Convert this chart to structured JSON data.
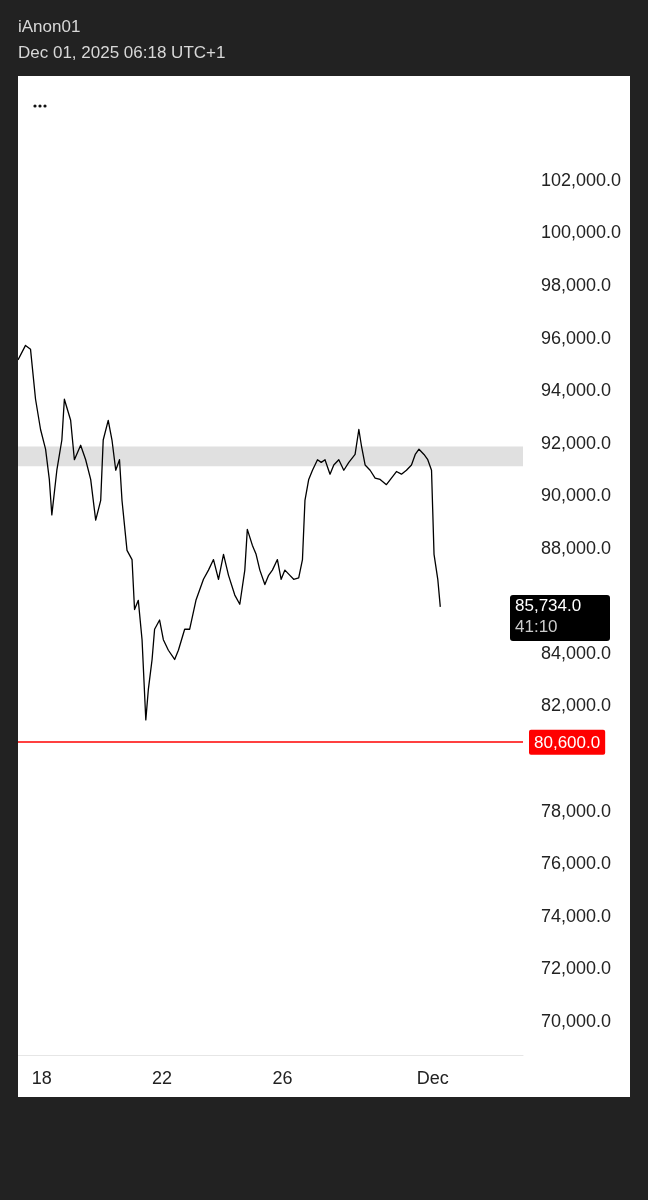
{
  "chart_data": {
    "type": "line",
    "title": "iAnon01",
    "subtitle": "Dec 01, 2025 06:18 UTC+1",
    "x": [
      "2025-11-17T05:00",
      "2025-11-17T11:00",
      "2025-11-17T15:00",
      "2025-11-17T19:00",
      "2025-11-17T23:00",
      "2025-11-18T03:00",
      "2025-11-18T06:00",
      "2025-11-18T08:00",
      "2025-11-18T12:00",
      "2025-11-18T16:00",
      "2025-11-18T18:00",
      "2025-11-18T23:00",
      "2025-11-19T02:00",
      "2025-11-19T07:00",
      "2025-11-19T11:00",
      "2025-11-19T15:00",
      "2025-11-19T19:00",
      "2025-11-19T23:00",
      "2025-11-20T01:00",
      "2025-11-20T05:00",
      "2025-11-20T08:00",
      "2025-11-20T11:00",
      "2025-11-20T14:00",
      "2025-11-20T16:00",
      "2025-11-20T20:00",
      "2025-11-21T00:00",
      "2025-11-21T02:00",
      "2025-11-21T05:00",
      "2025-11-21T08:00",
      "2025-11-21T11:00",
      "2025-11-21T13:00",
      "2025-11-21T16:00",
      "2025-11-21T18:00",
      "2025-11-21T22:00",
      "2025-11-22T01:00",
      "2025-11-22T05:00",
      "2025-11-22T10:00",
      "2025-11-22T13:00",
      "2025-11-22T18:00",
      "2025-11-22T22:00",
      "2025-11-23T03:00",
      "2025-11-23T06:00",
      "2025-11-23T09:00",
      "2025-11-23T13:00",
      "2025-11-23T17:00",
      "2025-11-23T21:00",
      "2025-11-24T01:00",
      "2025-11-24T05:00",
      "2025-11-24T10:00",
      "2025-11-24T14:00",
      "2025-11-24T18:00",
      "2025-11-24T20:00",
      "2025-11-25T00:00",
      "2025-11-25T03:00",
      "2025-11-25T06:00",
      "2025-11-25T10:00",
      "2025-11-25T13:00",
      "2025-11-25T16:00",
      "2025-11-25T20:00",
      "2025-11-25T23:00",
      "2025-11-26T02:00",
      "2025-11-26T06:00",
      "2025-11-26T09:00",
      "2025-11-26T13:00",
      "2025-11-26T16:00",
      "2025-11-26T18:00",
      "2025-11-26T21:00",
      "2025-11-27T00:00",
      "2025-11-27T04:00",
      "2025-11-27T07:00",
      "2025-11-27T10:00",
      "2025-11-27T14:00",
      "2025-11-27T17:00",
      "2025-11-27T21:00",
      "2025-11-28T01:00",
      "2025-11-28T05:00",
      "2025-11-28T10:00",
      "2025-11-28T13:00",
      "2025-11-28T15:00",
      "2025-11-28T18:00",
      "2025-11-28T22:00",
      "2025-11-29T02:00",
      "2025-11-29T06:00",
      "2025-11-29T11:00",
      "2025-11-29T15:00",
      "2025-11-29T19:00",
      "2025-11-29T23:00",
      "2025-11-30T03:00",
      "2025-11-30T07:00",
      "2025-11-30T10:00",
      "2025-11-30T13:00",
      "2025-11-30T17:00",
      "2025-11-30T20:00",
      "2025-11-30T23:00",
      "2025-12-01T01:00",
      "2025-12-01T04:00",
      "2025-12-01T06:00"
    ],
    "series": [
      {
        "color": "#000000",
        "values": [
          95150,
          95700,
          95550,
          93650,
          92500,
          91750,
          90600,
          89250,
          90950,
          92100,
          93650,
          92850,
          91350,
          91900,
          91350,
          90600,
          89050,
          89800,
          92100,
          92850,
          92100,
          90950,
          91350,
          89800,
          87900,
          87550,
          85650,
          86000,
          84500,
          81450,
          82600,
          83750,
          84900,
          85250,
          84500,
          84100,
          83750,
          84100,
          84900,
          84900,
          86000,
          86400,
          86800,
          87150,
          87550,
          86800,
          87750,
          86950,
          86200,
          85850,
          87150,
          88700,
          88100,
          87750,
          87150,
          86600,
          86950,
          87150,
          87550,
          86800,
          87150,
          86950,
          86800,
          86850,
          87550,
          89800,
          90600,
          90950,
          91350,
          91250,
          91350,
          90800,
          91150,
          91350,
          90950,
          91250,
          91550,
          92500,
          91900,
          91150,
          90950,
          90650,
          90600,
          90400,
          90650,
          90900,
          90800,
          90950,
          91150,
          91550,
          91750,
          91550,
          91350,
          90950,
          87750,
          86800,
          85750
        ]
      }
    ],
    "xlim": [
      "2025-11-17T05:00",
      "2025-12-04T00:00"
    ],
    "xticks": [
      {
        "value": "2025-11-18",
        "label": "18"
      },
      {
        "value": "2025-11-22",
        "label": "22"
      },
      {
        "value": "2025-11-26",
        "label": "26"
      },
      {
        "value": "2025-12-01",
        "label": "Dec"
      }
    ],
    "ylim": [
      68700,
      105950
    ],
    "yticks": [
      {
        "value": 70000,
        "label": "70,000.0"
      },
      {
        "value": 72000,
        "label": "72,000.0"
      },
      {
        "value": 74000,
        "label": "74,000.0"
      },
      {
        "value": 76000,
        "label": "76,000.0"
      },
      {
        "value": 78000,
        "label": "78,000.0"
      },
      {
        "value": 82000,
        "label": "82,000.0"
      },
      {
        "value": 84000,
        "label": "84,000.0"
      },
      {
        "value": 88000,
        "label": "88,000.0"
      },
      {
        "value": 90000,
        "label": "90,000.0"
      },
      {
        "value": 92000,
        "label": "92,000.0"
      },
      {
        "value": 94000,
        "label": "94,000.0"
      },
      {
        "value": 96000,
        "label": "96,000.0"
      },
      {
        "value": 98000,
        "label": "98,000.0"
      },
      {
        "value": 100000,
        "label": "100,000.0"
      },
      {
        "value": 102000,
        "label": "102,000.0"
      }
    ],
    "ref_lines": [
      {
        "axis": "y",
        "value": 80600,
        "label": "80,600.0",
        "color": "#ff0000"
      }
    ],
    "bands": [
      {
        "axis": "y",
        "from": 91100,
        "to": 91850,
        "color": "#e0e0e0"
      }
    ],
    "annotations": [
      "85,734.0",
      "41:10"
    ],
    "marker": "none"
  }
}
